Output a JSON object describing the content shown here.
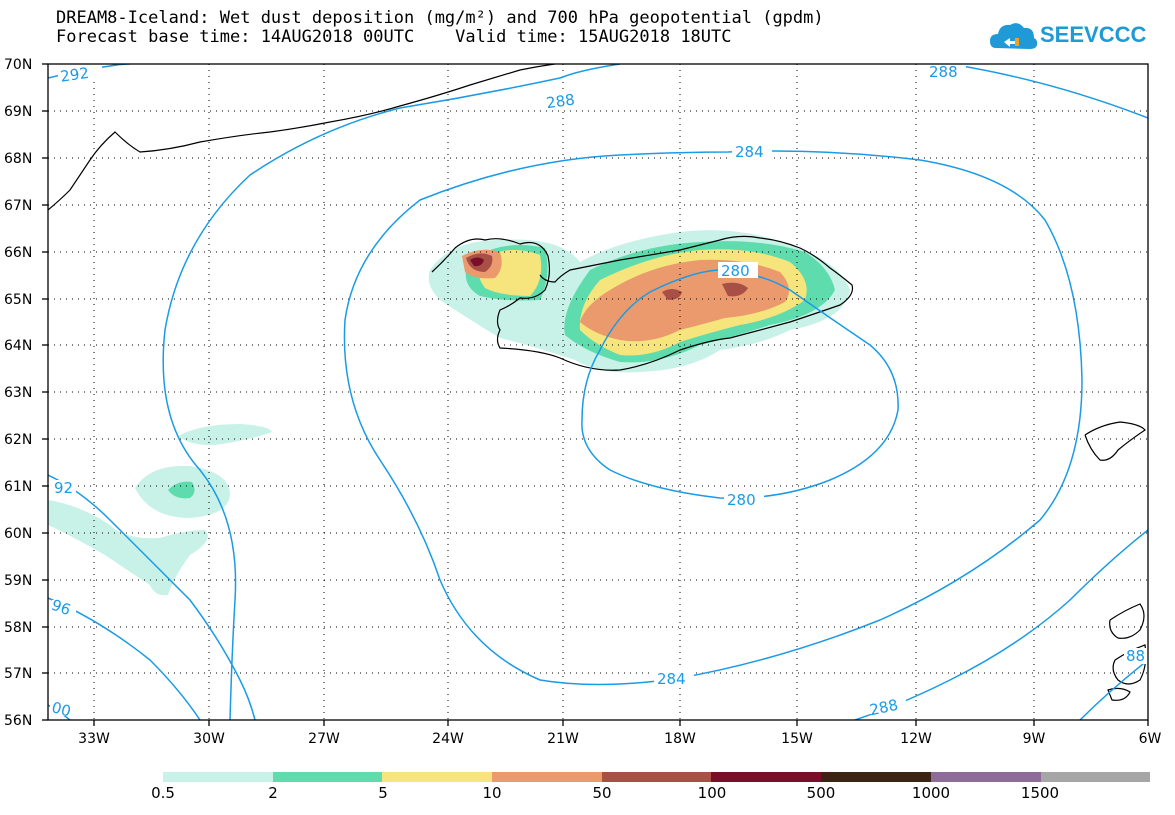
{
  "title_line1": "DREAM8-Iceland: Wet dust deposition (mg/m²) and 700 hPa geopotential (gpdm)",
  "title_line2": "Forecast base time: 14AUG2018 00UTC    Valid time: 15AUG2018 18UTC",
  "logo_text": "SEEVCCC",
  "logo_icon": "cloud-icon",
  "lat_labels": [
    "70N",
    "69N",
    "68N",
    "67N",
    "66N",
    "65N",
    "64N",
    "63N",
    "62N",
    "61N",
    "60N",
    "59N",
    "58N",
    "57N",
    "56N"
  ],
  "lon_labels": [
    "33W",
    "30W",
    "27W",
    "24W",
    "21W",
    "18W",
    "15W",
    "12W",
    "9W",
    "6W"
  ],
  "contour_labels": [
    "292",
    "288",
    "288",
    "284",
    "280",
    "280",
    "284",
    "288",
    "92",
    "96",
    "00",
    "88"
  ],
  "legend": {
    "labels": [
      "0.5",
      "2",
      "5",
      "10",
      "50",
      "100",
      "500",
      "1000",
      "1500"
    ],
    "colors": [
      "#c8f2e8",
      "#5edcae",
      "#f5e57c",
      "#eb9a6e",
      "#a84f46",
      "#7a0d28",
      "#3b2414",
      "#8e6c9a",
      "#a6a6a6"
    ]
  },
  "colors": {
    "contour": "#1a9be6",
    "coast": "#000000",
    "frame": "#000000"
  }
}
